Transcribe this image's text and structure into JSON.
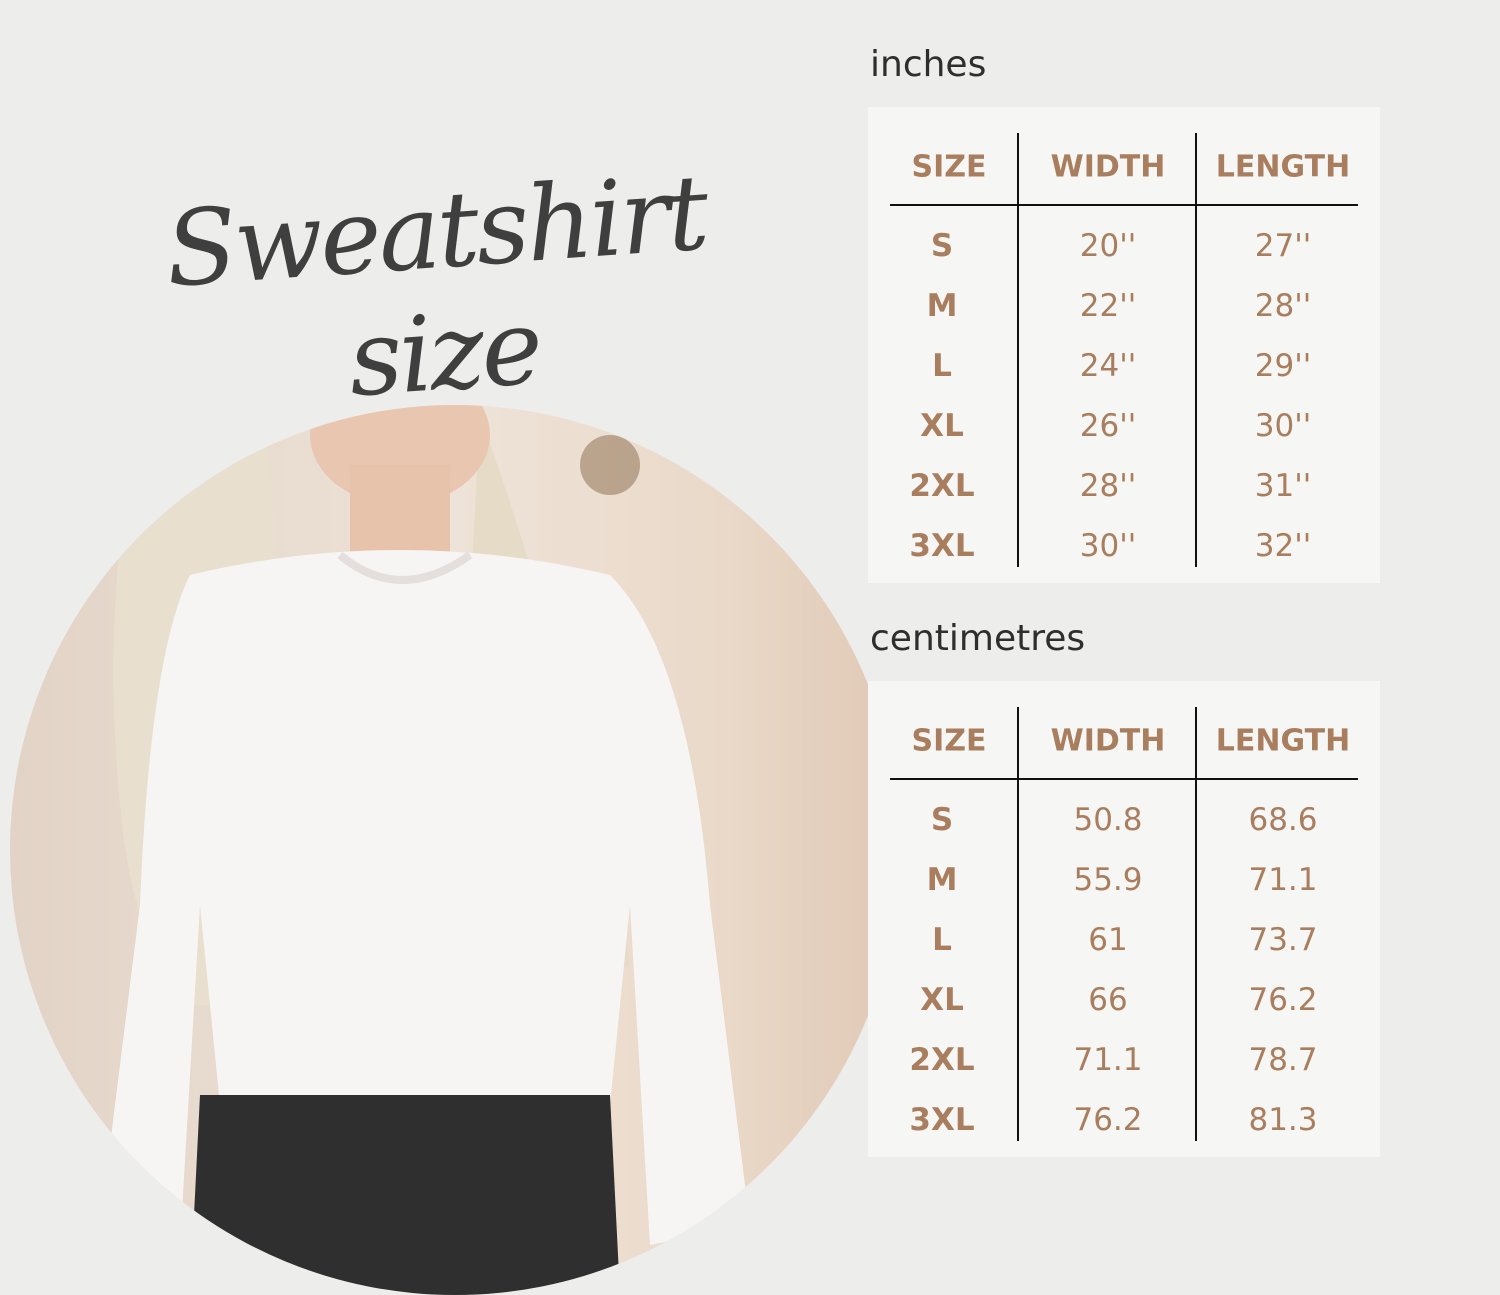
{
  "title": "Sweatshirt size",
  "colors": {
    "background": "#ededeb",
    "panel": "#f6f6f4",
    "accent": "#a97e5e",
    "title": "#3f3f3f"
  },
  "tables": [
    {
      "unit": "inches",
      "headers": [
        "SIZE",
        "WIDTH",
        "LENGTH"
      ],
      "rows": [
        [
          "S",
          "20''",
          "27''"
        ],
        [
          "M",
          "22''",
          "28''"
        ],
        [
          "L",
          "24''",
          "29''"
        ],
        [
          "XL",
          "26''",
          "30''"
        ],
        [
          "2XL",
          "28''",
          "31''"
        ],
        [
          "3XL",
          "30''",
          "32''"
        ]
      ]
    },
    {
      "unit": "centimetres",
      "headers": [
        "SIZE",
        "WIDTH",
        "LENGTH"
      ],
      "rows": [
        [
          "S",
          "50.8",
          "68.6"
        ],
        [
          "M",
          "55.9",
          "71.1"
        ],
        [
          "L",
          "61",
          "73.7"
        ],
        [
          "XL",
          "66",
          "76.2"
        ],
        [
          "2XL",
          "71.1",
          "78.7"
        ],
        [
          "3XL",
          "76.2",
          "81.3"
        ]
      ]
    }
  ]
}
